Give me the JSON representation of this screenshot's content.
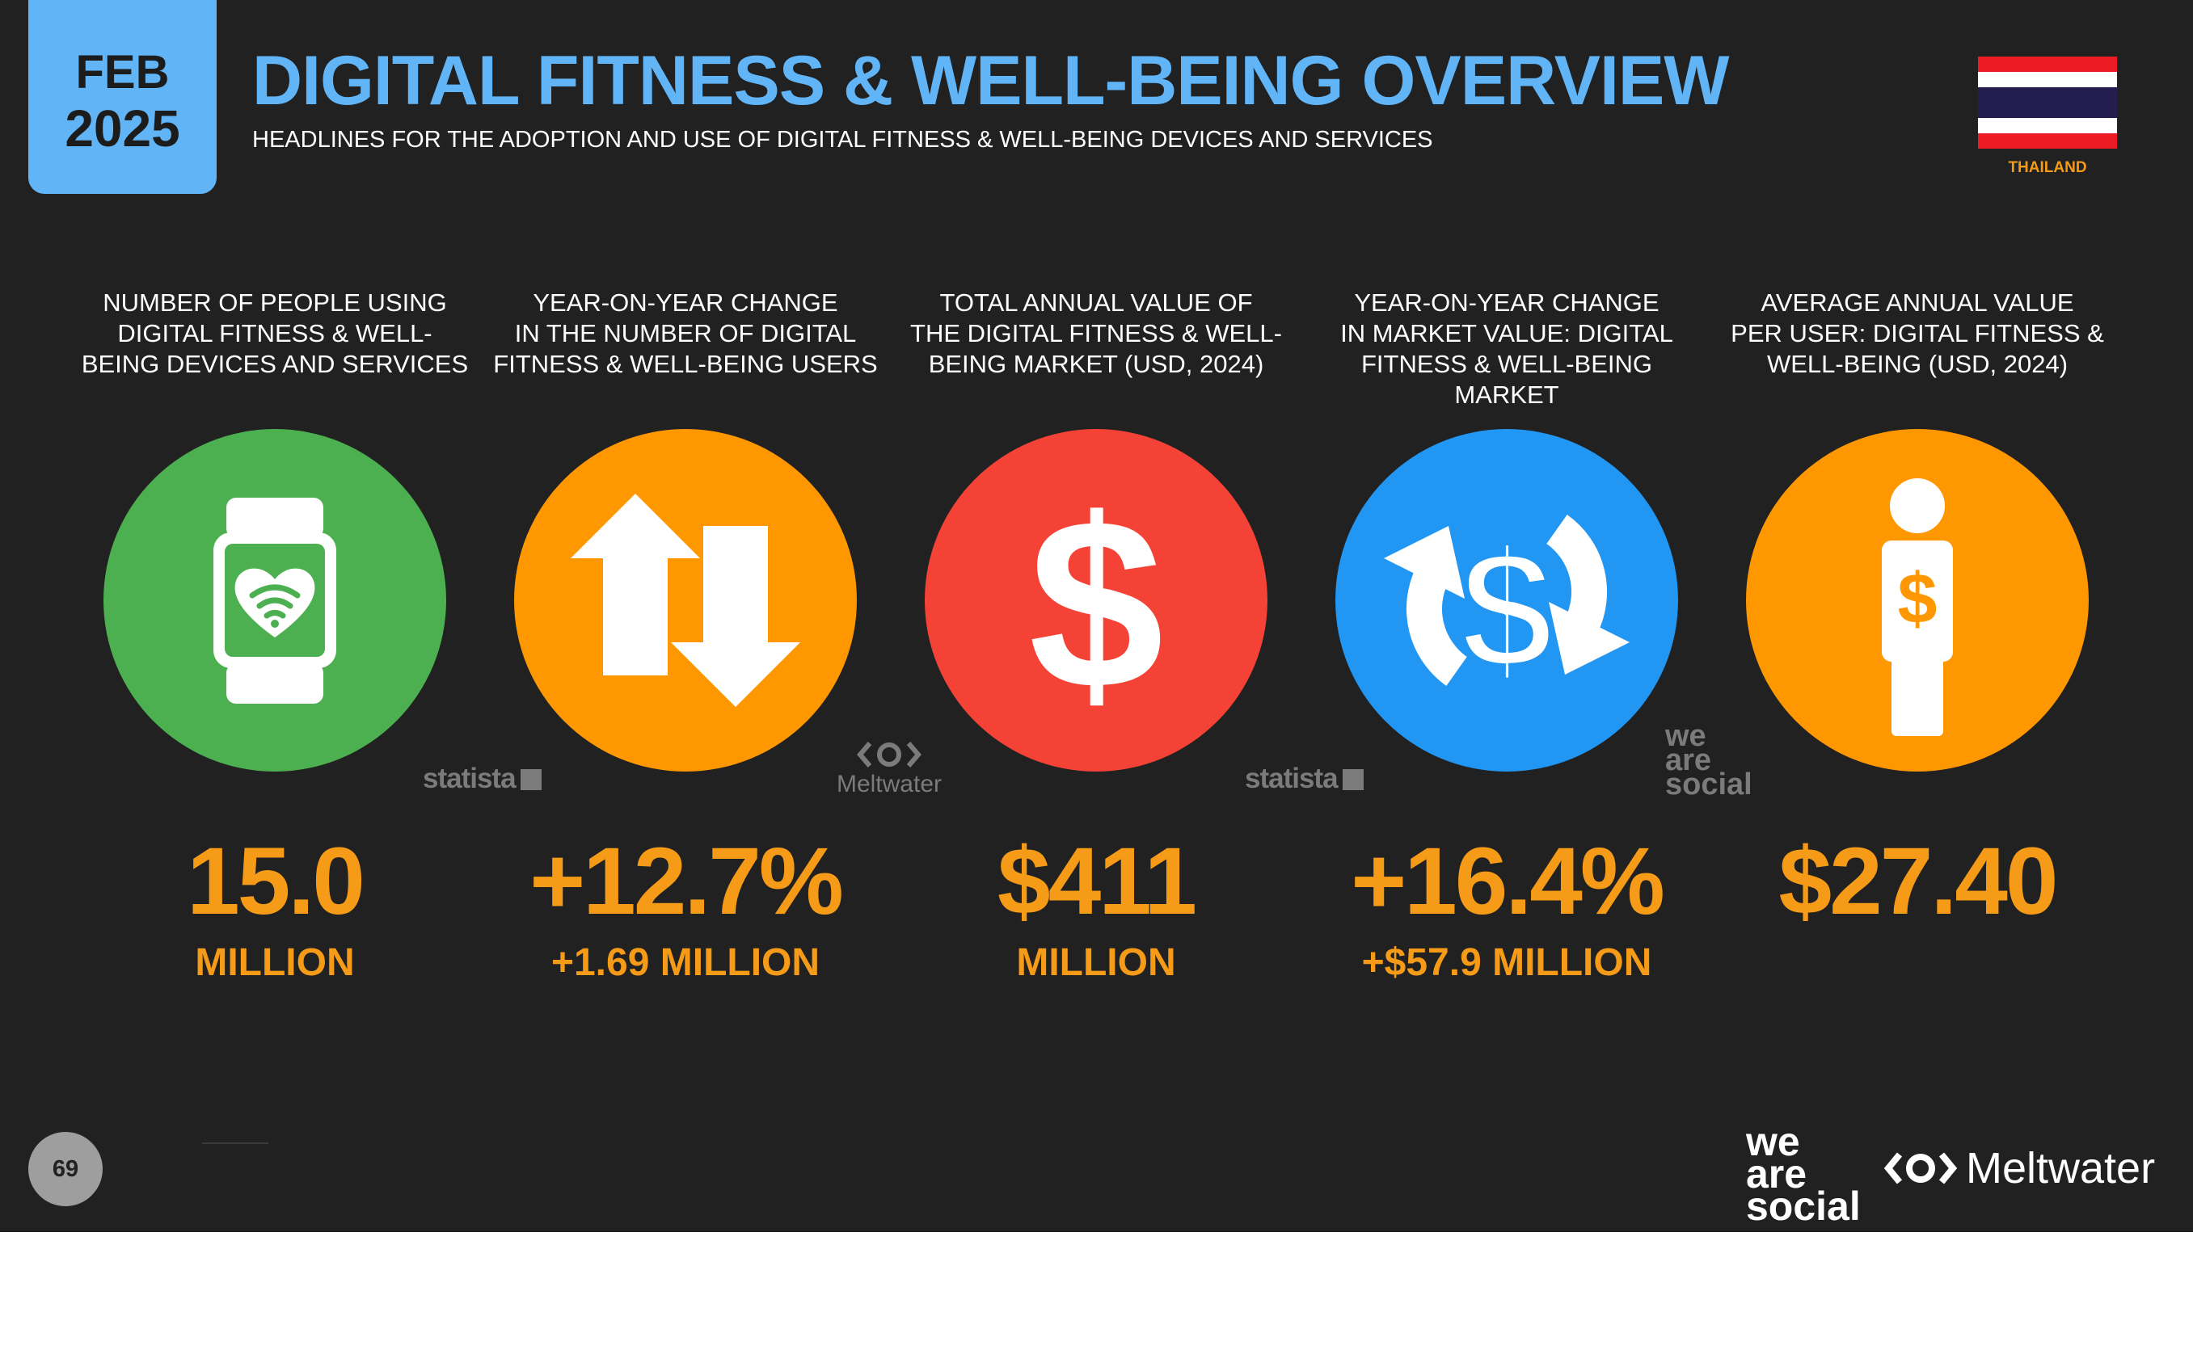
{
  "header": {
    "date_month": "FEB",
    "date_year": "2025",
    "title": "DIGITAL FITNESS & WELL-BEING OVERVIEW",
    "subtitle": "HEADLINES FOR THE ADOPTION AND USE OF DIGITAL FITNESS & WELL-BEING DEVICES AND SERVICES",
    "country": "THAILAND"
  },
  "metrics": [
    {
      "label": "NUMBER OF PEOPLE USING\nDIGITAL FITNESS & WELL-\nBEING DEVICES AND SERVICES",
      "value": "15.0",
      "sub": "MILLION",
      "icon": "smartwatch-heart-icon",
      "color": "#4caf50"
    },
    {
      "label": "YEAR-ON-YEAR CHANGE\nIN THE NUMBER OF DIGITAL\nFITNESS & WELL-BEING USERS",
      "value": "+12.7%",
      "sub": "+1.69 MILLION",
      "icon": "up-down-arrows-icon",
      "color": "#ff9800"
    },
    {
      "label": "TOTAL ANNUAL VALUE OF\nTHE DIGITAL FITNESS & WELL-\nBEING MARKET (USD, 2024)",
      "value": "$411",
      "sub": "MILLION",
      "icon": "dollar-sign-icon",
      "color": "#f44336"
    },
    {
      "label": "YEAR-ON-YEAR CHANGE\nIN MARKET VALUE: DIGITAL\nFITNESS & WELL-BEING MARKET",
      "value": "+16.4%",
      "sub": "+$57.9 MILLION",
      "icon": "dollar-exchange-icon",
      "color": "#2196f3"
    },
    {
      "label": "AVERAGE ANNUAL VALUE\nPER USER: DIGITAL FITNESS &\nWELL-BEING (USD, 2024)",
      "value": "$27.40",
      "sub": "",
      "icon": "person-dollar-icon",
      "color": "#ff9800"
    }
  ],
  "sources": {
    "statista": "statista",
    "meltwater": "Meltwater",
    "we_are_social": [
      "we",
      "are",
      "social"
    ]
  },
  "footer": {
    "page_number": "69",
    "brand_was": [
      "we",
      "are",
      "social"
    ],
    "brand_meltwater": "Meltwater"
  },
  "colors": {
    "background": "#212121",
    "accent_blue": "#61b5f7",
    "value_orange": "#f59b17",
    "flag_red": "#ed1c24",
    "flag_blue": "#241d4f"
  }
}
